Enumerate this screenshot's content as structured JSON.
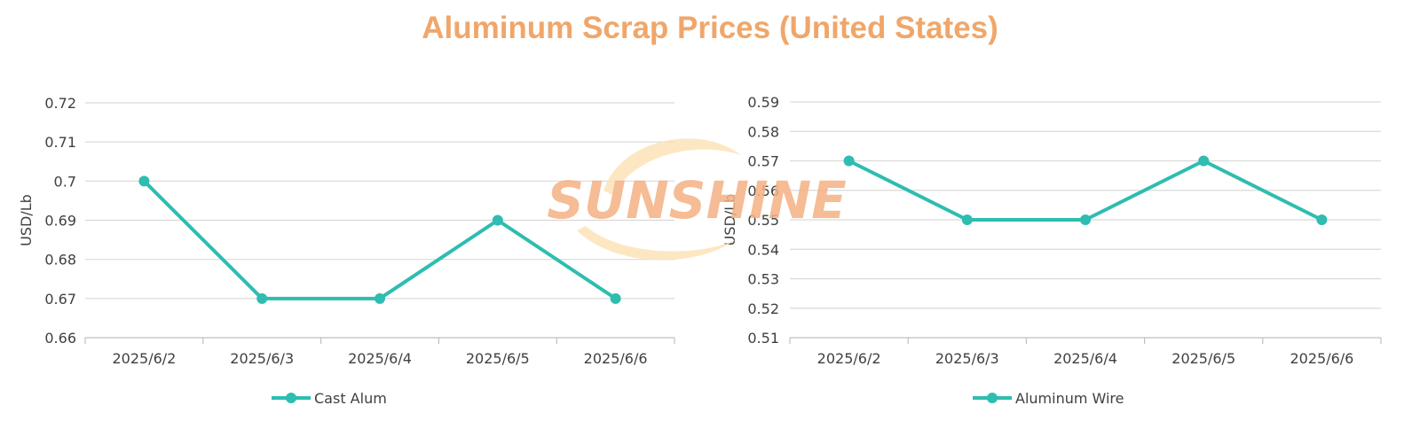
{
  "title": "Aluminum Scrap Prices (United States)",
  "watermark": "SUNSHINE",
  "colors": {
    "title": "#f0a66a",
    "series": "#2ebdb0",
    "grid": "#d9d9d9",
    "axis": "#bfbfbf",
    "watermark_text": "#f4b183",
    "watermark_swoosh": "#fde3b8"
  },
  "chart_data": [
    {
      "type": "line",
      "ylabel": "USD/Lb",
      "xlabel": "",
      "categories": [
        "2025/6/2",
        "2025/6/3",
        "2025/6/4",
        "2025/6/5",
        "2025/6/6"
      ],
      "series": [
        {
          "name": "Cast Alum",
          "values": [
            0.7,
            0.67,
            0.67,
            0.69,
            0.67
          ]
        }
      ],
      "ylim": [
        0.66,
        0.72
      ],
      "yticks": [
        "0.66",
        "0.67",
        "0.68",
        "0.69",
        "0.7",
        "0.71",
        "0.72"
      ],
      "grid": true,
      "legend": "bottom"
    },
    {
      "type": "line",
      "ylabel": "USD/Lb",
      "xlabel": "",
      "categories": [
        "2025/6/2",
        "2025/6/3",
        "2025/6/4",
        "2025/6/5",
        "2025/6/6"
      ],
      "series": [
        {
          "name": "Aluminum Wire",
          "values": [
            0.57,
            0.55,
            0.55,
            0.57,
            0.55
          ]
        }
      ],
      "ylim": [
        0.51,
        0.59
      ],
      "yticks": [
        "0.51",
        "0.52",
        "0.53",
        "0.54",
        "0.55",
        "0.56",
        "0.57",
        "0.58",
        "0.59"
      ],
      "grid": true,
      "legend": "bottom"
    }
  ]
}
